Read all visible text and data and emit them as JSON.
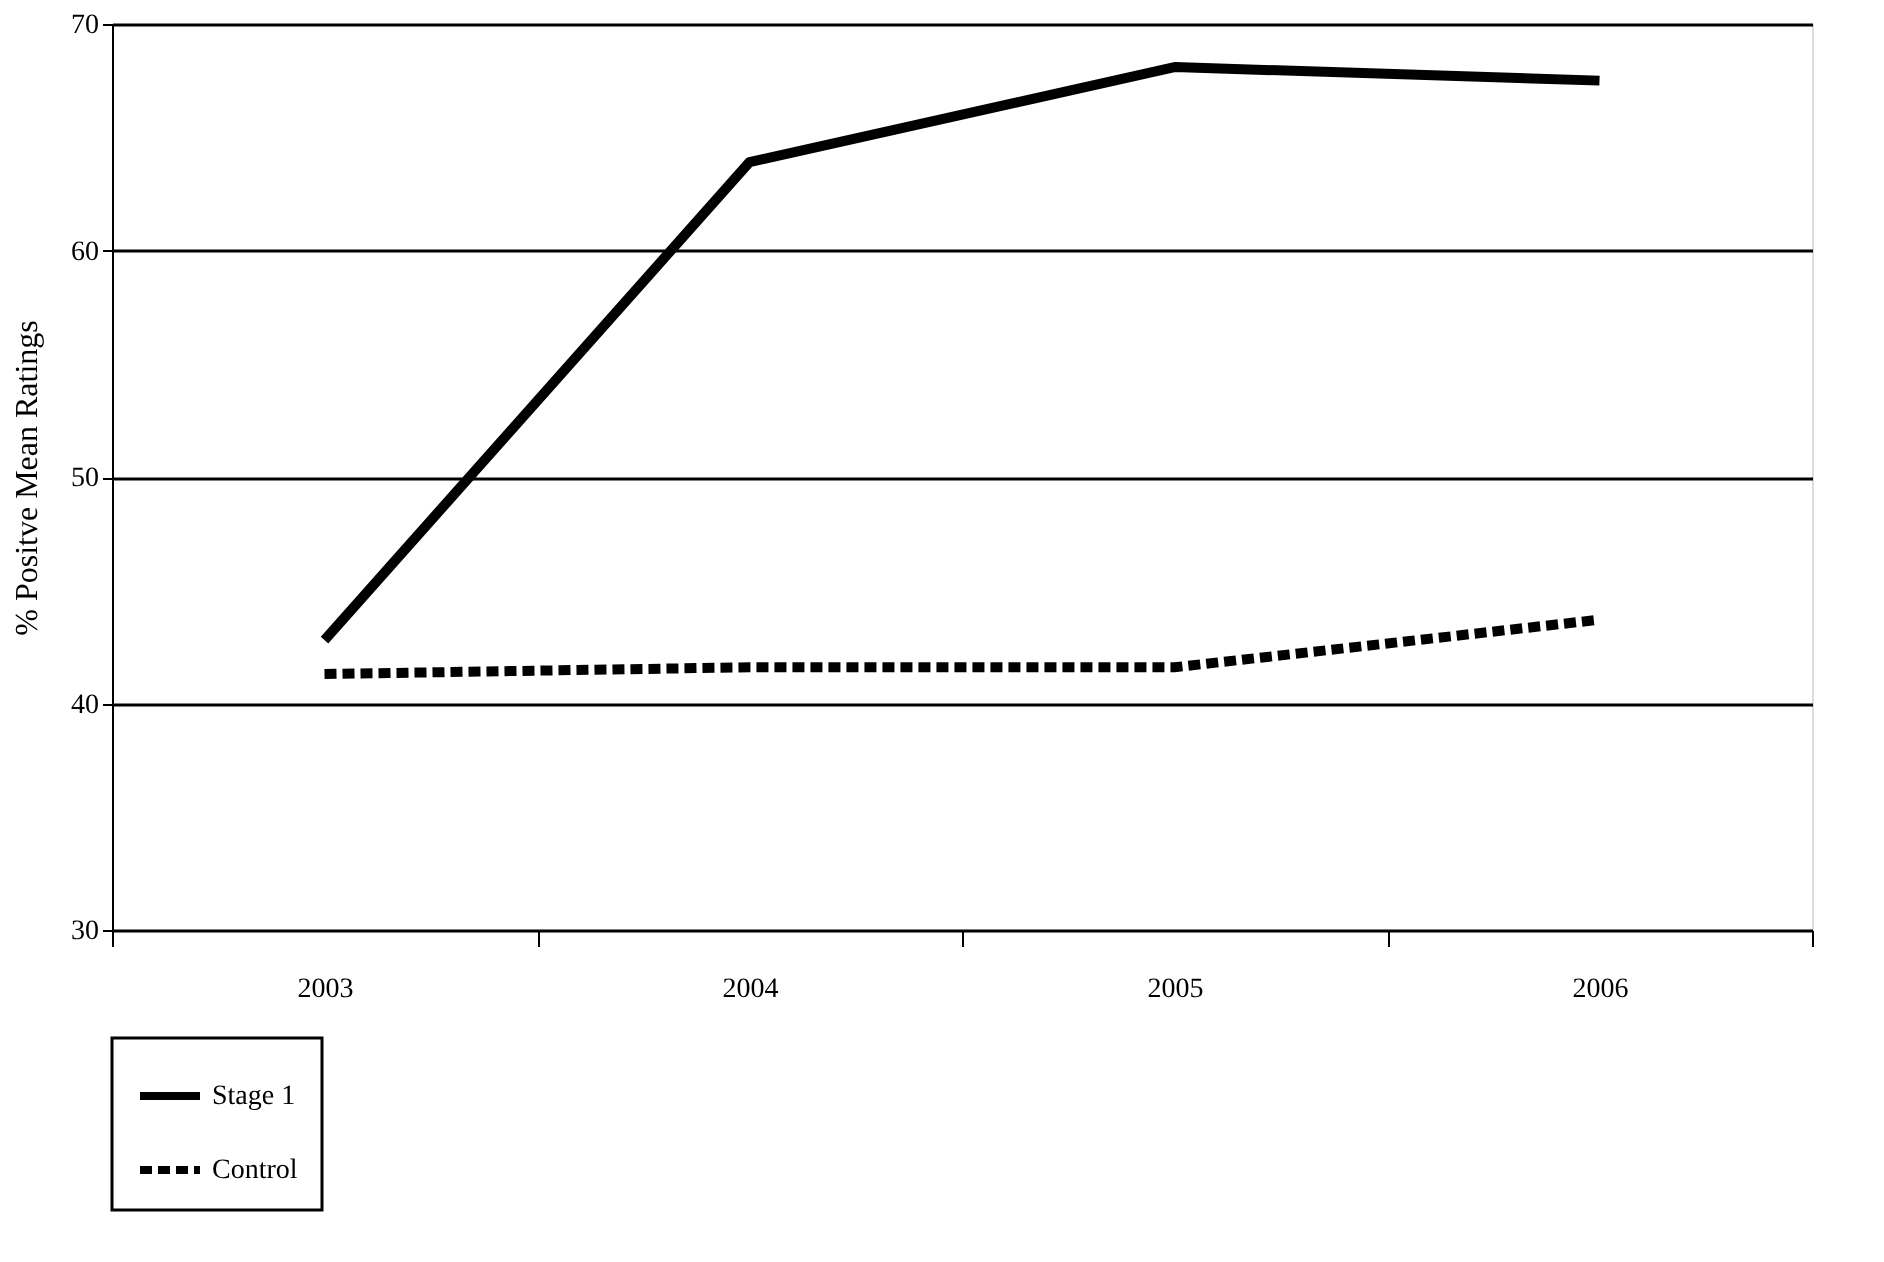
{
  "chart_data": {
    "type": "line",
    "ylabel": "% Positve Mean Ratings",
    "categories": [
      "2003",
      "2004",
      "2005",
      "2006"
    ],
    "series": [
      {
        "name": "Stage 1",
        "color": "#000000",
        "line_style": "solid",
        "values": [
          42.8,
          63.9,
          68.1,
          67.5
        ]
      },
      {
        "name": "Control",
        "color": "#000000",
        "line_style": "dotted",
        "values": [
          41.3,
          41.6,
          41.6,
          43.7
        ]
      }
    ],
    "ylim": [
      30,
      70
    ],
    "yticks": [
      30,
      40,
      50,
      60,
      70
    ],
    "grid": "y",
    "legend": "bottom",
    "marker": "none"
  }
}
